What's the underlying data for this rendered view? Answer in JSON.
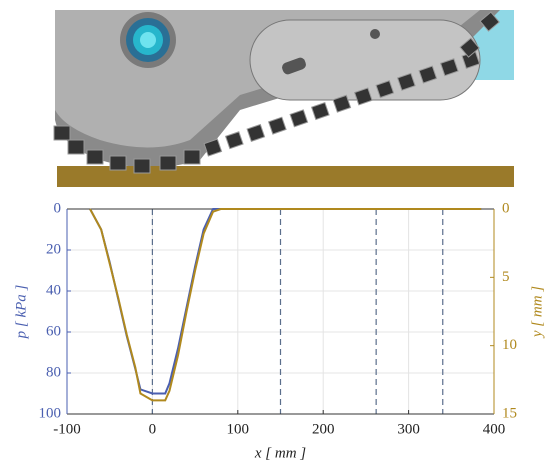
{
  "chart_data": {
    "type": "line",
    "x_label": "x [ mm ]",
    "y_label": "p [ kPa ]",
    "y2_label": "y [ mm ]",
    "x": [
      -73,
      -60,
      -50,
      -40,
      -30,
      -20,
      -14,
      0,
      15,
      20,
      30,
      40,
      50,
      60,
      71,
      80,
      385
    ],
    "series": [
      {
        "name": "p",
        "color": "#4a5fb0",
        "axis": "y",
        "values": [
          0,
          10,
          26,
          44,
          62,
          78,
          88,
          90,
          90,
          85,
          68,
          48,
          28,
          10,
          0,
          0,
          0
        ]
      },
      {
        "name": "y",
        "color": "#b0891e",
        "axis": "y2",
        "values": [
          0,
          1.5,
          4,
          6.5,
          9.2,
          11.6,
          13.5,
          14,
          14,
          13.3,
          10.7,
          7.5,
          4.5,
          1.8,
          0.2,
          0,
          0
        ]
      }
    ],
    "xlim": [
      -100,
      400
    ],
    "xticks": [
      -100,
      0,
      100,
      200,
      300,
      400
    ],
    "ylim": [
      0,
      100
    ],
    "yticks": [
      0,
      20,
      40,
      60,
      80,
      100
    ],
    "y2lim": [
      0,
      15
    ],
    "y2ticks": [
      0,
      5,
      10,
      15
    ],
    "y_inverted": true,
    "grid": true,
    "vlines": [
      0,
      150,
      262,
      340
    ],
    "vline_color": "#5a6e8c"
  }
}
